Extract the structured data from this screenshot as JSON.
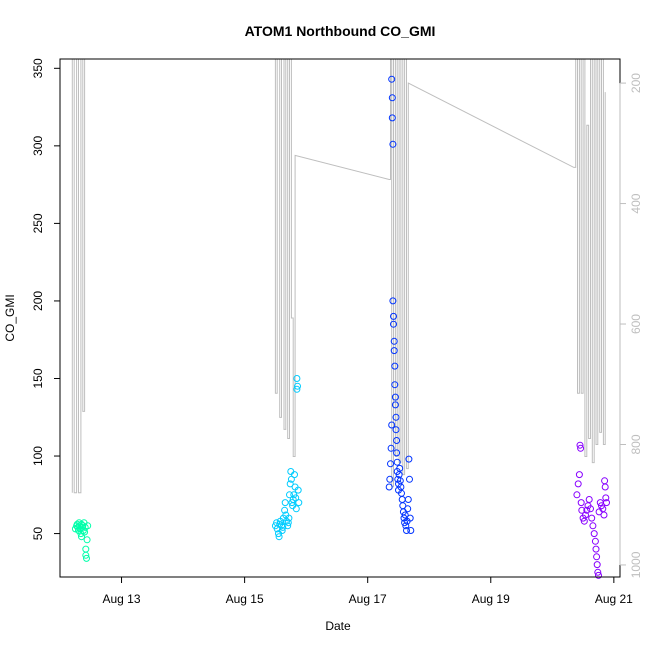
{
  "chart_data": {
    "type": "scatter",
    "title": "ATOM1 Northbound CO_GMI",
    "xlabel": "Date",
    "ylabel": "CO_GMI",
    "xlim": [
      12.0,
      21.1
    ],
    "ylim": [
      22,
      356
    ],
    "x_ticks": [
      {
        "value": 13,
        "label": "Aug 13"
      },
      {
        "value": 15,
        "label": "Aug 15"
      },
      {
        "value": 17,
        "label": "Aug 17"
      },
      {
        "value": 19,
        "label": "Aug 19"
      },
      {
        "value": 21,
        "label": "Aug 21"
      }
    ],
    "y_ticks": [
      50,
      100,
      150,
      200,
      250,
      300,
      350
    ],
    "y2_label": "",
    "y2_ticks": [
      200,
      400,
      600,
      800,
      1000
    ],
    "y2_lim": [
      1020,
      160
    ],
    "y2_reversed": true,
    "colors": {
      "altitude_line": "#bebebe",
      "axis": "#000000",
      "flight1": "#00ffaa",
      "flight2": "#00ccff",
      "flight3": "#0033ff",
      "flight4": "#8800ff"
    },
    "series": [
      {
        "color": "#00ffaa",
        "points": [
          [
            12.25,
            53
          ],
          [
            12.27,
            55
          ],
          [
            12.28,
            56
          ],
          [
            12.29,
            54
          ],
          [
            12.3,
            52
          ],
          [
            12.31,
            57
          ],
          [
            12.32,
            55
          ],
          [
            12.33,
            53
          ],
          [
            12.34,
            50
          ],
          [
            12.35,
            48
          ],
          [
            12.35,
            56
          ],
          [
            12.36,
            54
          ],
          [
            12.37,
            55
          ],
          [
            12.38,
            52
          ],
          [
            12.39,
            57
          ],
          [
            12.4,
            51
          ],
          [
            12.41,
            54
          ],
          [
            12.42,
            40
          ],
          [
            12.42,
            36
          ],
          [
            12.43,
            34
          ],
          [
            12.44,
            46
          ],
          [
            12.45,
            55
          ]
        ]
      },
      {
        "color": "#00ccff",
        "points": [
          [
            15.5,
            55
          ],
          [
            15.52,
            57
          ],
          [
            15.53,
            53
          ],
          [
            15.55,
            50
          ],
          [
            15.56,
            48
          ],
          [
            15.57,
            56
          ],
          [
            15.58,
            58
          ],
          [
            15.6,
            55
          ],
          [
            15.61,
            52
          ],
          [
            15.62,
            54
          ],
          [
            15.63,
            60
          ],
          [
            15.65,
            65
          ],
          [
            15.66,
            70
          ],
          [
            15.67,
            62
          ],
          [
            15.68,
            58
          ],
          [
            15.7,
            55
          ],
          [
            15.71,
            57
          ],
          [
            15.72,
            60
          ],
          [
            15.73,
            75
          ],
          [
            15.74,
            82
          ],
          [
            15.75,
            90
          ],
          [
            15.76,
            85
          ],
          [
            15.77,
            70
          ],
          [
            15.78,
            68
          ],
          [
            15.79,
            72
          ],
          [
            15.8,
            75
          ],
          [
            15.81,
            88
          ],
          [
            15.82,
            80
          ],
          [
            15.83,
            73
          ],
          [
            15.84,
            66
          ],
          [
            15.85,
            150
          ],
          [
            15.85,
            143
          ],
          [
            15.86,
            145
          ],
          [
            15.87,
            78
          ],
          [
            15.88,
            70
          ]
        ]
      },
      {
        "color": "#0033ff",
        "points": [
          [
            17.35,
            80
          ],
          [
            17.36,
            85
          ],
          [
            17.37,
            95
          ],
          [
            17.38,
            105
          ],
          [
            17.39,
            120
          ],
          [
            17.39,
            343
          ],
          [
            17.4,
            331
          ],
          [
            17.4,
            318
          ],
          [
            17.41,
            301
          ],
          [
            17.41,
            200
          ],
          [
            17.42,
            190
          ],
          [
            17.42,
            185
          ],
          [
            17.43,
            174
          ],
          [
            17.43,
            168
          ],
          [
            17.44,
            158
          ],
          [
            17.44,
            146
          ],
          [
            17.45,
            138
          ],
          [
            17.45,
            133
          ],
          [
            17.46,
            125
          ],
          [
            17.46,
            117
          ],
          [
            17.47,
            110
          ],
          [
            17.47,
            102
          ],
          [
            17.48,
            96
          ],
          [
            17.48,
            90
          ],
          [
            17.49,
            85
          ],
          [
            17.5,
            82
          ],
          [
            17.5,
            78
          ],
          [
            17.51,
            88
          ],
          [
            17.52,
            92
          ],
          [
            17.53,
            84
          ],
          [
            17.54,
            80
          ],
          [
            17.55,
            76
          ],
          [
            17.56,
            72
          ],
          [
            17.57,
            68
          ],
          [
            17.58,
            64
          ],
          [
            17.59,
            60
          ],
          [
            17.6,
            57
          ],
          [
            17.61,
            62
          ],
          [
            17.62,
            55
          ],
          [
            17.63,
            52
          ],
          [
            17.64,
            58
          ],
          [
            17.65,
            66
          ],
          [
            17.66,
            72
          ],
          [
            17.67,
            98
          ],
          [
            17.68,
            85
          ],
          [
            17.69,
            60
          ],
          [
            17.7,
            52
          ]
        ]
      },
      {
        "color": "#8800ff",
        "points": [
          [
            20.4,
            75
          ],
          [
            20.42,
            82
          ],
          [
            20.44,
            88
          ],
          [
            20.45,
            107
          ],
          [
            20.46,
            105
          ],
          [
            20.47,
            70
          ],
          [
            20.48,
            65
          ],
          [
            20.5,
            60
          ],
          [
            20.52,
            58
          ],
          [
            20.54,
            62
          ],
          [
            20.56,
            65
          ],
          [
            20.58,
            68
          ],
          [
            20.6,
            72
          ],
          [
            20.62,
            66
          ],
          [
            20.64,
            60
          ],
          [
            20.66,
            55
          ],
          [
            20.68,
            50
          ],
          [
            20.7,
            45
          ],
          [
            20.71,
            40
          ],
          [
            20.72,
            35
          ],
          [
            20.73,
            30
          ],
          [
            20.74,
            25
          ],
          [
            20.75,
            23
          ],
          [
            20.76,
            64
          ],
          [
            20.78,
            70
          ],
          [
            20.8,
            68
          ],
          [
            20.82,
            66
          ],
          [
            20.84,
            62
          ],
          [
            20.85,
            84
          ],
          [
            20.86,
            80
          ],
          [
            20.87,
            73
          ],
          [
            20.88,
            70
          ]
        ]
      }
    ],
    "altitude_trace": [
      [
        12.2,
        880
      ],
      [
        12.2,
        155
      ],
      [
        12.23,
        155
      ],
      [
        12.23,
        880
      ],
      [
        12.27,
        880
      ],
      [
        12.27,
        155
      ],
      [
        12.3,
        155
      ],
      [
        12.3,
        880
      ],
      [
        12.34,
        880
      ],
      [
        12.34,
        155
      ],
      [
        12.37,
        155
      ],
      [
        12.37,
        745
      ],
      [
        12.4,
        745
      ],
      [
        12.4,
        155
      ],
      [
        15.5,
        155
      ],
      [
        15.5,
        715
      ],
      [
        15.53,
        715
      ],
      [
        15.53,
        155
      ],
      [
        15.57,
        155
      ],
      [
        15.57,
        755
      ],
      [
        15.6,
        755
      ],
      [
        15.6,
        155
      ],
      [
        15.64,
        155
      ],
      [
        15.64,
        775
      ],
      [
        15.67,
        775
      ],
      [
        15.67,
        155
      ],
      [
        15.7,
        155
      ],
      [
        15.7,
        790
      ],
      [
        15.73,
        790
      ],
      [
        15.73,
        155
      ],
      [
        15.76,
        155
      ],
      [
        15.76,
        590
      ],
      [
        15.79,
        590
      ],
      [
        15.79,
        820
      ],
      [
        15.82,
        820
      ],
      [
        15.82,
        320
      ],
      [
        17.35,
        360
      ],
      [
        17.37,
        360
      ],
      [
        17.37,
        155
      ],
      [
        17.39,
        155
      ],
      [
        17.39,
        870
      ],
      [
        17.42,
        870
      ],
      [
        17.42,
        155
      ],
      [
        17.45,
        155
      ],
      [
        17.45,
        820
      ],
      [
        17.48,
        820
      ],
      [
        17.48,
        155
      ],
      [
        17.51,
        155
      ],
      [
        17.51,
        830
      ],
      [
        17.54,
        830
      ],
      [
        17.54,
        155
      ],
      [
        17.57,
        155
      ],
      [
        17.57,
        850
      ],
      [
        17.6,
        850
      ],
      [
        17.6,
        155
      ],
      [
        17.63,
        155
      ],
      [
        17.63,
        840
      ],
      [
        17.66,
        840
      ],
      [
        17.66,
        200
      ],
      [
        20.35,
        340
      ],
      [
        20.38,
        340
      ],
      [
        20.38,
        155
      ],
      [
        20.41,
        155
      ],
      [
        20.41,
        715
      ],
      [
        20.44,
        715
      ],
      [
        20.44,
        155
      ],
      [
        20.47,
        155
      ],
      [
        20.47,
        715
      ],
      [
        20.5,
        715
      ],
      [
        20.5,
        155
      ],
      [
        20.53,
        155
      ],
      [
        20.53,
        820
      ],
      [
        20.56,
        820
      ],
      [
        20.56,
        270
      ],
      [
        20.59,
        270
      ],
      [
        20.59,
        790
      ],
      [
        20.62,
        790
      ],
      [
        20.62,
        155
      ],
      [
        20.65,
        155
      ],
      [
        20.65,
        830
      ],
      [
        20.68,
        830
      ],
      [
        20.68,
        155
      ],
      [
        20.71,
        155
      ],
      [
        20.71,
        800
      ],
      [
        20.74,
        800
      ],
      [
        20.74,
        155
      ],
      [
        20.77,
        155
      ],
      [
        20.77,
        780
      ],
      [
        20.8,
        780
      ],
      [
        20.8,
        155
      ],
      [
        20.83,
        155
      ],
      [
        20.83,
        800
      ],
      [
        20.86,
        800
      ],
      [
        20.86,
        215
      ]
    ]
  }
}
